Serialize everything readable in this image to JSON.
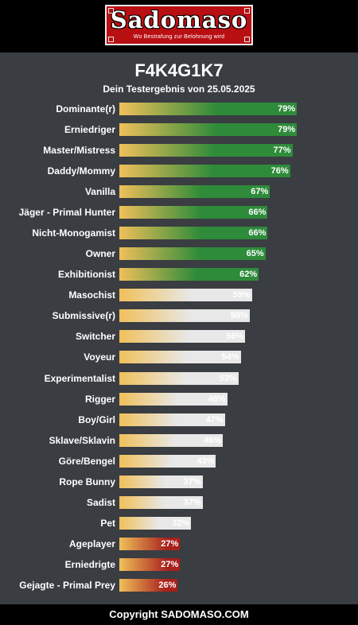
{
  "logo": {
    "word": "Sadomaso",
    "tagline": "Wo Bestrafung zur Belohnung wird"
  },
  "header": {
    "title": "F4K4G1K7",
    "subtitle": "Dein Testergebnis von 25.05.2025"
  },
  "footer": {
    "text": "Copyright SADOMASO.COM"
  },
  "colors": {
    "background": "#3a3d42",
    "bar_start": "#f0c05a",
    "high": "#2e8b3a",
    "mid": "#e8e8e8",
    "low": "#a8201c"
  },
  "chart_data": {
    "type": "bar",
    "orientation": "horizontal",
    "title": "F4K4G1K7",
    "subtitle": "Dein Testergebnis von 25.05.2025",
    "value_suffix": "%",
    "xlim": [
      0,
      100
    ],
    "grid": false,
    "categories": [
      "Dominante(r)",
      "Erniedriger",
      "Master/Mistress",
      "Daddy/Mommy",
      "Vanilla",
      "Jäger - Primal Hunter",
      "Nicht-Monogamist",
      "Owner",
      "Exhibitionist",
      "Masochist",
      "Submissive(r)",
      "Switcher",
      "Voyeur",
      "Experimentalist",
      "Rigger",
      "Boy/Girl",
      "Sklave/Sklavin",
      "Göre/Bengel",
      "Rope Bunny",
      "Sadist",
      "Pet",
      "Ageplayer",
      "Erniedrigte",
      "Gejagte - Primal Prey"
    ],
    "values": [
      79,
      79,
      77,
      76,
      67,
      66,
      66,
      65,
      62,
      59,
      58,
      56,
      54,
      53,
      48,
      47,
      46,
      43,
      37,
      37,
      32,
      27,
      27,
      26
    ],
    "color_bands": [
      "high",
      "high",
      "high",
      "high",
      "high",
      "high",
      "high",
      "high",
      "high",
      "mid",
      "mid",
      "mid",
      "mid",
      "mid",
      "mid",
      "mid",
      "mid",
      "mid",
      "mid",
      "mid",
      "mid",
      "low",
      "low",
      "low"
    ]
  }
}
